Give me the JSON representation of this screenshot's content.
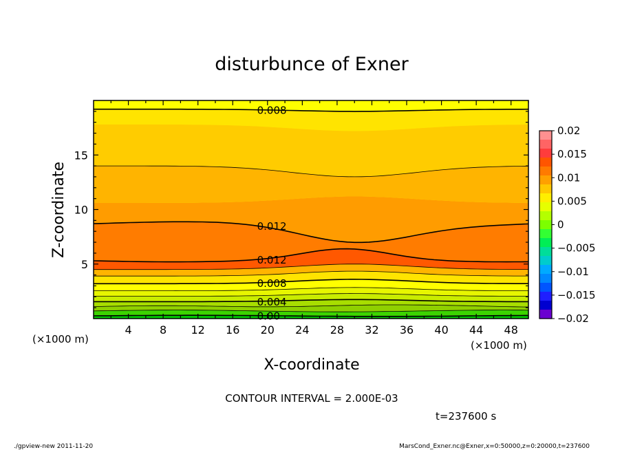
{
  "chart_data": {
    "type": "heatmap",
    "subtype": "filled-contour",
    "title": "disturbunce of Exner",
    "xlabel": "X-coordinate",
    "ylabel": "Z-coordinate",
    "x_unit": "(×1000 m)",
    "z_unit": "(×1000 m)",
    "xlim": [
      0,
      50
    ],
    "ylim": [
      0,
      20
    ],
    "x_ticks": [
      "4",
      "8",
      "12",
      "16",
      "20",
      "24",
      "28",
      "32",
      "36",
      "40",
      "44",
      "48"
    ],
    "y_ticks": [
      "5",
      "10",
      "15"
    ],
    "colorbar": {
      "ticks": [
        "0.02",
        "0.015",
        "0.01",
        "0.005",
        "0",
        "−0.005",
        "−0.01",
        "−0.015",
        "−0.02"
      ],
      "range": [
        -0.02,
        0.02
      ]
    },
    "contour_labels": [
      "0.008",
      "0.012",
      "0.012",
      "0.008",
      "0.004",
      "0.00"
    ],
    "contour_interval_text": "CONTOUR INTERVAL = 2.000E-03",
    "time_text": "t=237600 s",
    "footer_left": "./gpview-new  2011-11-20",
    "footer_right": "MarsCond_Exner.nc@Exner,x=0:50000,z=0:20000,t=237600",
    "grid": false,
    "legend": "colorbar-right"
  },
  "colors": {
    "bands": [
      "#8fd000",
      "#a8de00",
      "#c9ec00",
      "#e7f600",
      "#ffff00",
      "#ffe400",
      "#ffcc00",
      "#ffb400",
      "#ff9c00",
      "#ff7c00",
      "#ff5800"
    ],
    "colorbar": [
      "#ff9090",
      "#ff6464",
      "#ff3c3c",
      "#ff5500",
      "#ff7a00",
      "#ffa000",
      "#ffc800",
      "#ffee00",
      "#e6ff00",
      "#b4ff00",
      "#7cff00",
      "#33ff33",
      "#00ee55",
      "#00dd99",
      "#00cccc",
      "#00aaff",
      "#0088ff",
      "#0055ff",
      "#1f1fff",
      "#0000d0",
      "#6a00d0"
    ]
  }
}
